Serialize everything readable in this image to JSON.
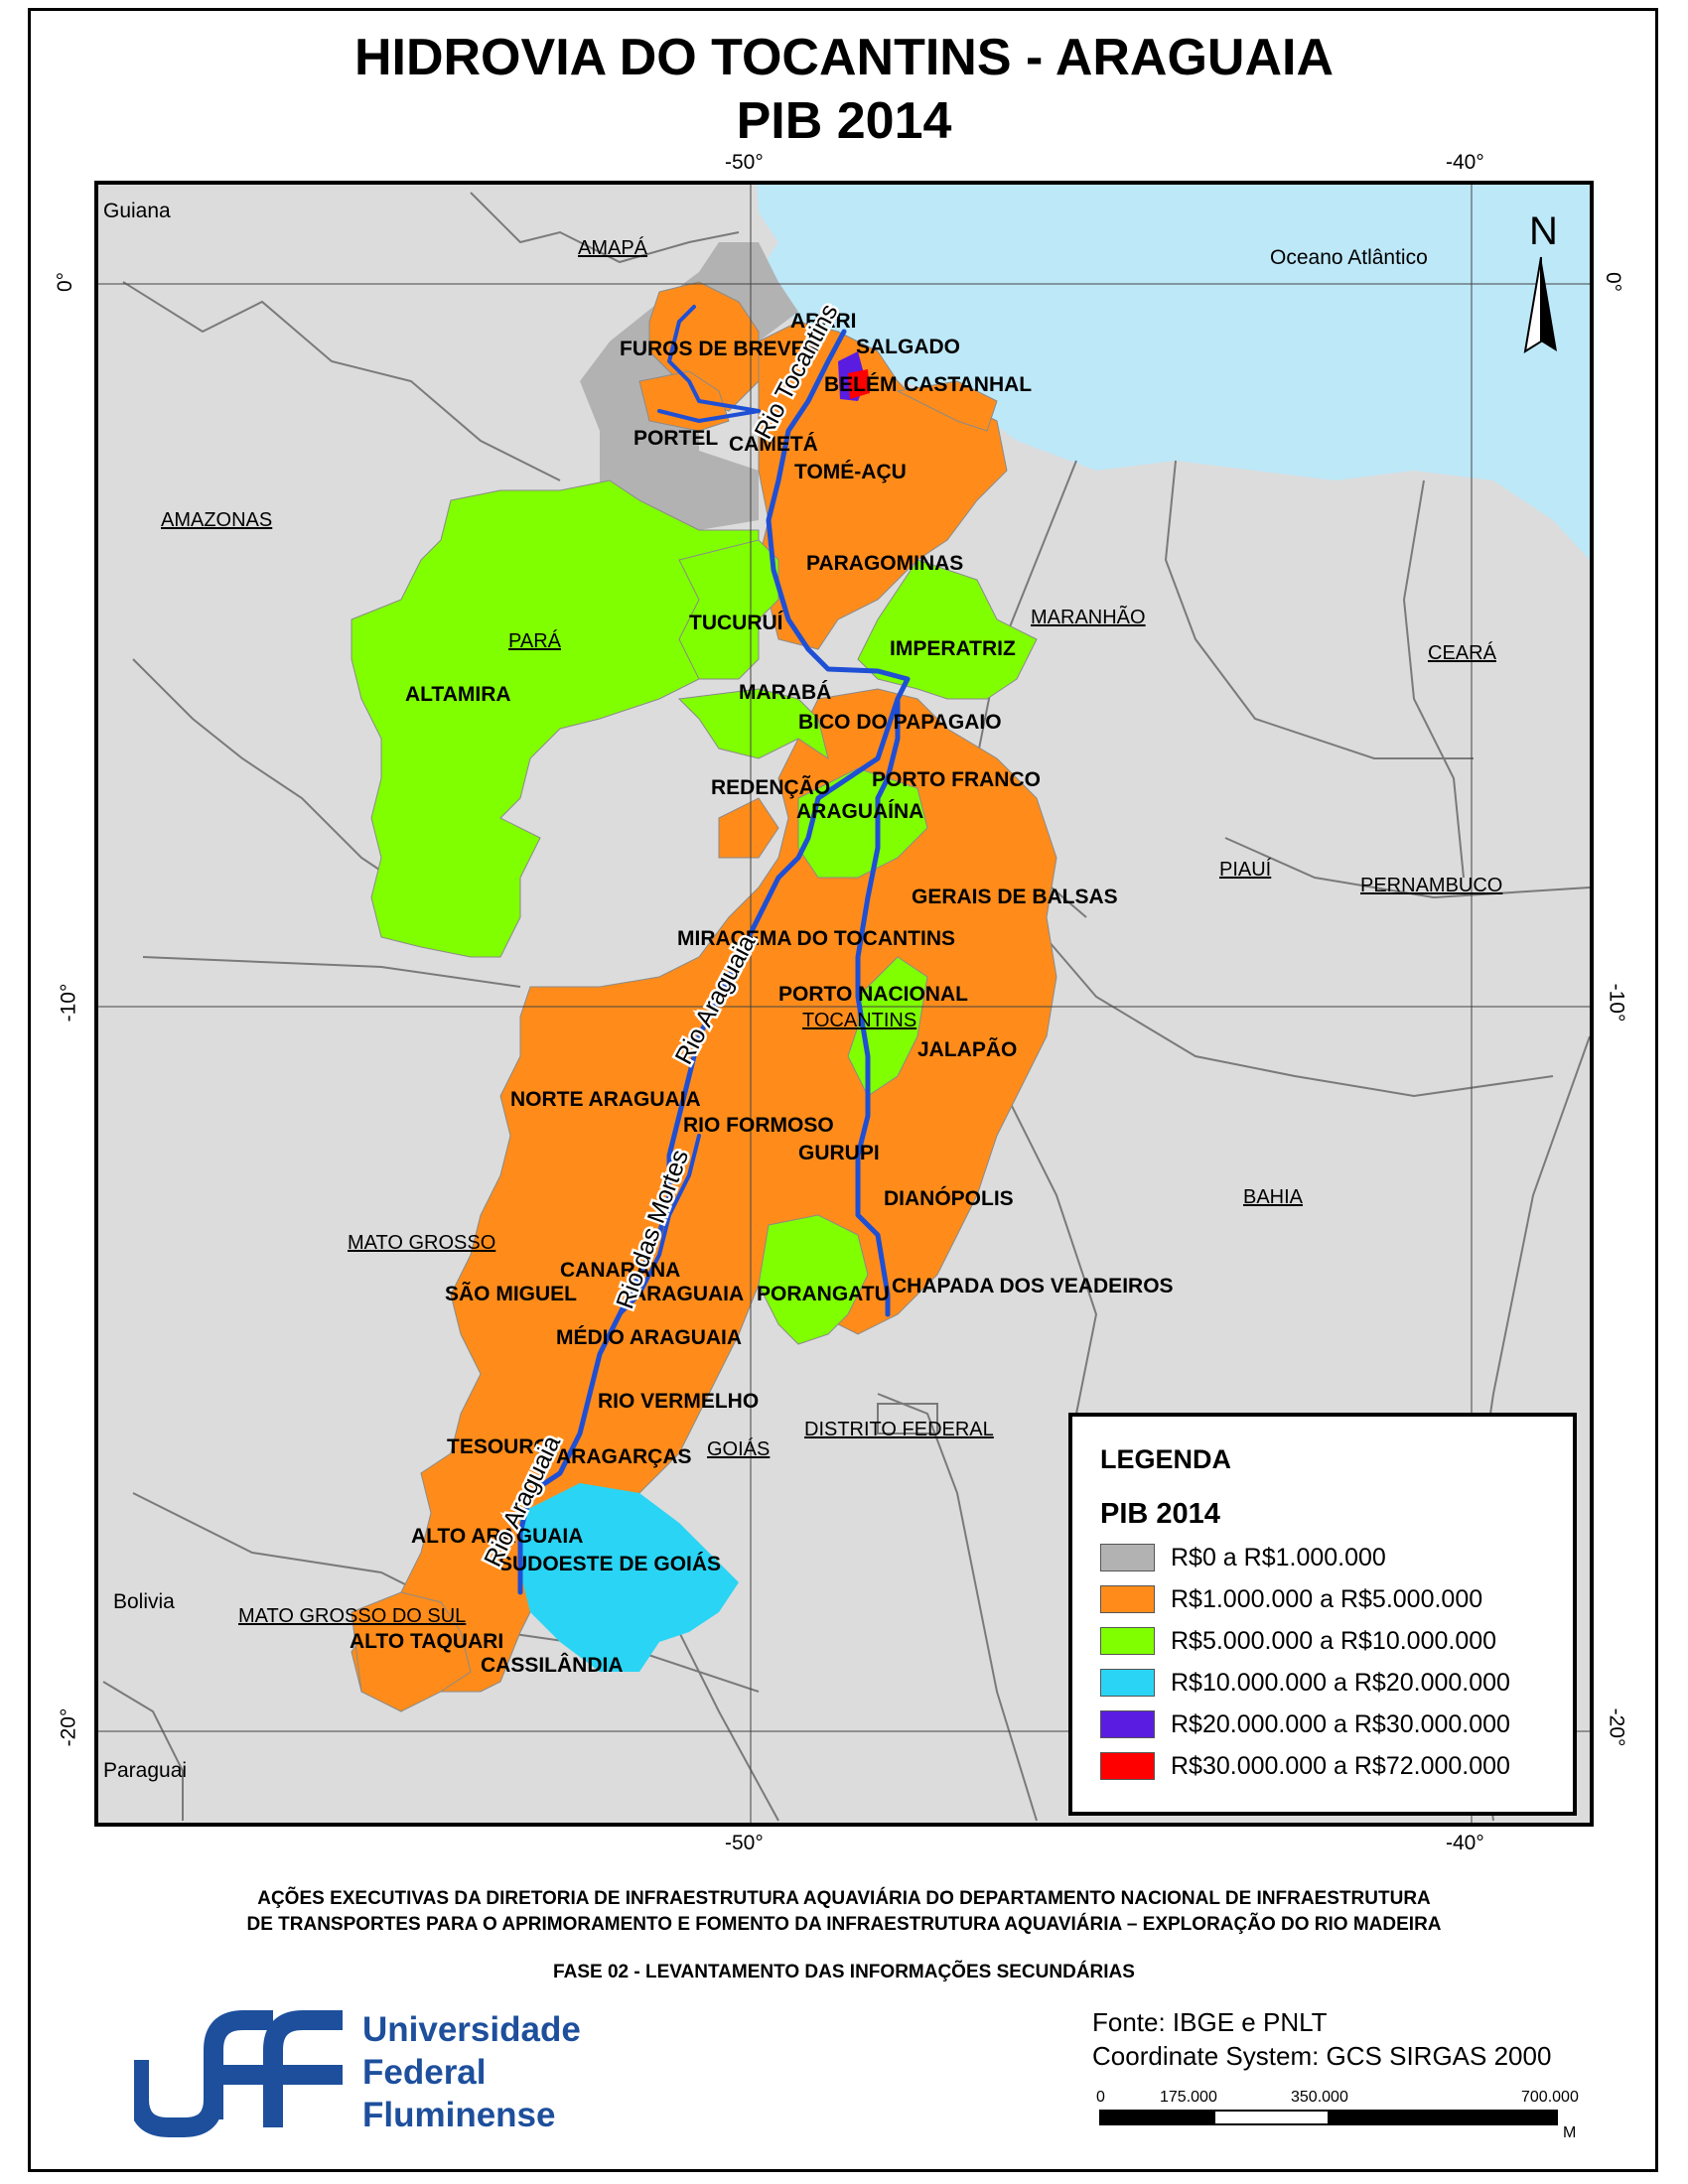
{
  "title": {
    "line1": "HIDROVIA DO TOCANTINS - ARAGUAIA",
    "line2": "PIB 2014"
  },
  "map": {
    "graticule": {
      "top": [
        "-50°",
        "-40°"
      ],
      "bottom": [
        "-50°",
        "-40°"
      ],
      "left": [
        "0°",
        "-10°",
        "-20°"
      ],
      "right": [
        "0°",
        "-10°",
        "-20°"
      ]
    },
    "north_arrow": "N",
    "places": {
      "guiana": "Guiana",
      "oceano": "Oceano Atlântico",
      "bolivia": "Bolivia",
      "paraguai": "Paraguai"
    },
    "states": {
      "amapa": "AMAPÁ",
      "amazonas": "AMAZONAS",
      "para": "PARÁ",
      "maranhao": "MARANHÃO",
      "ceara": "CEARÁ",
      "piaui": "PIAUÍ",
      "pernambuco": "PERNAMBUCO",
      "tocantins": "TOCANTINS",
      "bahia": "BAHIA",
      "mato_grosso": "MATO GROSSO",
      "distrito_federal": "DISTRITO FEDERAL",
      "goias": "GOIÁS",
      "mato_grosso_do_sul": "MATO GROSSO DO SUL"
    },
    "regions": {
      "furos": "FUROS DE BREVES",
      "arari": "ARARI",
      "salgado": "SALGADO",
      "belem": "BELÉM",
      "castanhal": "CASTANHAL",
      "portel": "PORTEL",
      "cameta": "CAMETÁ",
      "tome_acu": "TOMÉ-AÇU",
      "paragominas": "PARAGOMINAS",
      "tucurui": "TUCURUÍ",
      "imperatriz": "IMPERATRIZ",
      "altamira": "ALTAMIRA",
      "maraba": "MARABÁ",
      "bico": "BICO DO PAPAGAIO",
      "redencao": "REDENÇÃO",
      "porto_franco": "PORTO FRANCO",
      "araguaina": "ARAGUAÍNA",
      "gerais": "GERAIS DE BALSAS",
      "miracema": "MIRACEMA DO TOCANTINS",
      "porto_nacional": "PORTO NACIONAL",
      "jalapao": "JALAPÃO",
      "norte_araguaia": "NORTE ARAGUAIA",
      "rio_formoso": "RIO FORMOSO",
      "gurupi": "GURUPI",
      "dianopolis": "DIANÓPOLIS",
      "canarana": "CANARANA",
      "sao_miguel": "SÃO MIGUEL",
      "araguaia": "ARAGUAIA",
      "porangatu": "PORANGATU",
      "chapada": "CHAPADA DOS VEADEIROS",
      "medio_araguaia": "MÉDIO ARAGUAIA",
      "rio_vermelho": "RIO VERMELHO",
      "tesouro": "TESOURO",
      "aragarcas": "ARAGARÇAS",
      "alto_araguaia": "ALTO ARAGUAIA",
      "sudoeste": "SUDOESTE DE GOIÁS",
      "alto_taquari": "ALTO TAQUARI",
      "cassilandia": "CASSILÂNDIA"
    },
    "rivers": {
      "tocantins": "Rio Tocantins",
      "araguaia_upper": "Rio Araguaia",
      "mortes": "Rio das Mortes",
      "araguaia_lower": "Rio Araguaia"
    },
    "colors": {
      "ocean": "#bde8f8",
      "land": "#dcdcdc",
      "grey": "#b2b2b2",
      "orange": "#ff8c1a",
      "green": "#80ff00",
      "cyan": "#2ad4f4",
      "purple": "#5a1ce0",
      "red": "#ff0000",
      "river": "#1f4fd4"
    }
  },
  "legend": {
    "title": "LEGENDA",
    "subtitle": "PIB 2014",
    "items": [
      {
        "label": "R$0 a R$1.000.000",
        "color": "#b2b2b2"
      },
      {
        "label": "R$1.000.000 a R$5.000.000",
        "color": "#ff8c1a"
      },
      {
        "label": "R$5.000.000 a R$10.000.000",
        "color": "#80ff00"
      },
      {
        "label": "R$10.000.000 a R$20.000.000",
        "color": "#2ad4f4"
      },
      {
        "label": "R$20.000.000 a R$30.000.000",
        "color": "#5a1ce0"
      },
      {
        "label": "R$30.000.000 a R$72.000.000",
        "color": "#ff0000"
      }
    ]
  },
  "footer": {
    "line1": "AÇÕES EXECUTIVAS DA DIRETORIA DE INFRAESTRUTURA AQUAVIÁRIA DO DEPARTAMENTO NACIONAL DE INFRAESTRUTURA",
    "line2": "DE TRANSPORTES PARA O APRIMORAMENTO E FOMENTO DA INFRAESTRUTURA AQUAVIÁRIA – EXPLORAÇÃO DO RIO MADEIRA",
    "line3": "FASE 02 - LEVANTAMENTO DAS INFORMAÇÕES SECUNDÁRIAS",
    "uni1": "Universidade",
    "uni2": "Federal",
    "uni3": "Fluminense",
    "source": "Fonte: IBGE e PNLT",
    "coords": "Coordinate System: GCS SIRGAS 2000",
    "scale": [
      "0",
      "175.000",
      "350.000",
      "700.000"
    ],
    "scale_unit": "M"
  }
}
